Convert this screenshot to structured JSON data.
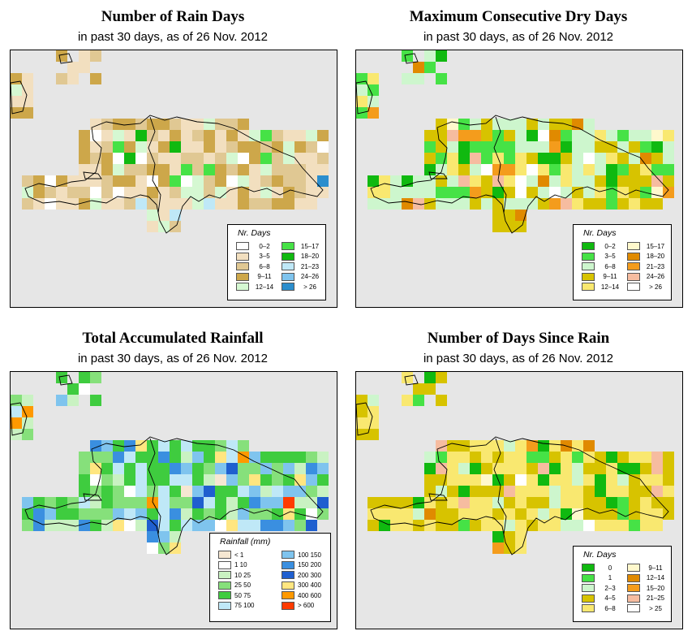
{
  "panels": [
    {
      "title": "Number of Rain Days",
      "subtitle": "in past 30 days, as of  26 Nov. 2012",
      "legend": {
        "title": "Nr. Days",
        "items": [
          {
            "label": "0–2",
            "color": "#ffffff"
          },
          {
            "label": "3–5",
            "color": "#f2dfbf"
          },
          {
            "label": "6–8",
            "color": "#e0c893"
          },
          {
            "label": "9–11",
            "color": "#cda74a"
          },
          {
            "label": "12–14",
            "color": "#d5f8d2"
          },
          {
            "label": "15–17",
            "color": "#46e246"
          },
          {
            "label": "18–20",
            "color": "#10b910"
          },
          {
            "label": "21–23",
            "color": "#bfe8f7"
          },
          {
            "label": "24–26",
            "color": "#7fc4ee"
          },
          {
            "label": "> 26",
            "color": "#2c8ecd"
          }
        ]
      }
    },
    {
      "title": "Maximum Consecutive Dry Days",
      "subtitle": "in past 30 days, as of  26 Nov. 2012",
      "legend": {
        "title": "Nr. Days",
        "items": [
          {
            "label": "0–2",
            "color": "#10b910"
          },
          {
            "label": "3–5",
            "color": "#46e246"
          },
          {
            "label": "6–8",
            "color": "#cdf6cd"
          },
          {
            "label": "9–11",
            "color": "#d7c300"
          },
          {
            "label": "12–14",
            "color": "#f9e870"
          },
          {
            "label": "15–17",
            "color": "#fff8cc"
          },
          {
            "label": "18–20",
            "color": "#e08a00"
          },
          {
            "label": "21–23",
            "color": "#f49c1c"
          },
          {
            "label": "24–26",
            "color": "#f6bca0"
          },
          {
            "label": "> 26",
            "color": "#ffffff"
          }
        ]
      }
    },
    {
      "title": "Total Accumulated Rainfall",
      "subtitle": "in past 30 days, as of  26 Nov. 2012",
      "legend": {
        "title": "Rainfall (mm)",
        "items": [
          {
            "label": "< 1",
            "color": "#f6e7d2"
          },
          {
            "label": "1    10",
            "color": "#ffffff"
          },
          {
            "label": "10    25",
            "color": "#c9f2c2"
          },
          {
            "label": "25    50",
            "color": "#86e07b"
          },
          {
            "label": "50    75",
            "color": "#3fcc3f"
          },
          {
            "label": "75    100",
            "color": "#bfe8f7"
          },
          {
            "label": "100   150",
            "color": "#7fc4ee"
          },
          {
            "label": "150   200",
            "color": "#3a8fe0"
          },
          {
            "label": "200   300",
            "color": "#1f5fcf"
          },
          {
            "label": "300   400",
            "color": "#ffe680"
          },
          {
            "label": "400   600",
            "color": "#ff9900"
          },
          {
            "label": "> 600",
            "color": "#ff3b00"
          }
        ]
      }
    },
    {
      "title": "Number of Days Since Rain",
      "subtitle": "in past 30 days, as of  26 Nov. 2012",
      "legend": {
        "title": "Nr. Days",
        "items": [
          {
            "label": "0",
            "color": "#10b910"
          },
          {
            "label": "1",
            "color": "#46e246"
          },
          {
            "label": "2–3",
            "color": "#cdf6cd"
          },
          {
            "label": "4–5",
            "color": "#d7c300"
          },
          {
            "label": "6–8",
            "color": "#f9e870"
          },
          {
            "label": "9–11",
            "color": "#fff8cc"
          },
          {
            "label": "12–14",
            "color": "#e08a00"
          },
          {
            "label": "15–20",
            "color": "#f49c1c"
          },
          {
            "label": "21–25",
            "color": "#f6bca0"
          },
          {
            "label": "> 25",
            "color": "#ffffff"
          }
        ]
      }
    }
  ]
}
